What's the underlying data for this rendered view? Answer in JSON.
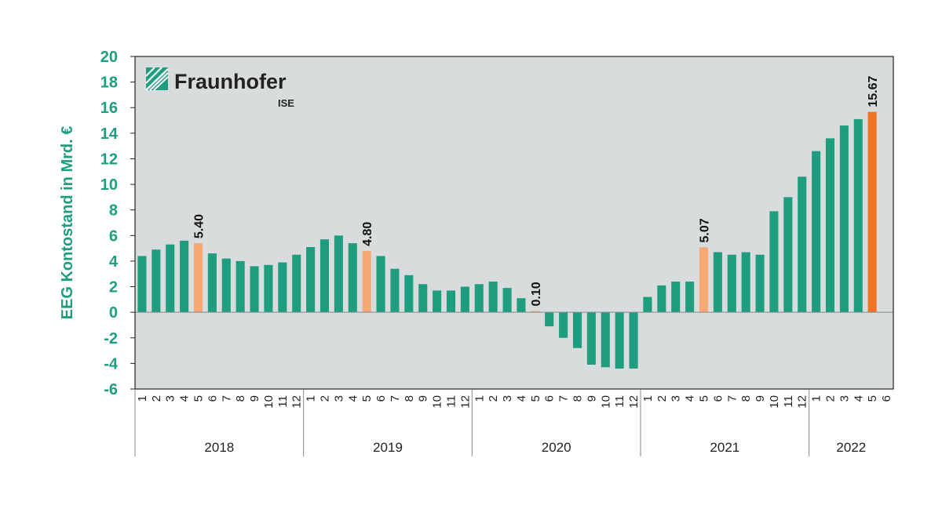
{
  "logo": {
    "name": "Fraunhofer",
    "sub": "ISE"
  },
  "colors": {
    "bar": "#1e9e7f",
    "highlight_light": "#f6a875",
    "highlight_dark": "#ee7421",
    "plot_background": "#d9dcdc",
    "axis_label": "#1e9e7f"
  },
  "chart_data": {
    "type": "bar",
    "ylabel": "EEG Kontostand in Mrd. €",
    "ylim": [
      -6,
      20
    ],
    "yticks": [
      20,
      18,
      16,
      14,
      12,
      10,
      8,
      6,
      4,
      2,
      0,
      -2,
      -4,
      -6
    ],
    "grid": false,
    "years": [
      {
        "label": "2018",
        "months": 12
      },
      {
        "label": "2019",
        "months": 12
      },
      {
        "label": "2020",
        "months": 12
      },
      {
        "label": "2021",
        "months": 12
      },
      {
        "label": "2022",
        "months": 6
      }
    ],
    "month_labels": [
      "1",
      "2",
      "3",
      "4",
      "5",
      "6",
      "7",
      "8",
      "9",
      "10",
      "11",
      "12",
      "1",
      "2",
      "3",
      "4",
      "5",
      "6",
      "7",
      "8",
      "9",
      "10",
      "11",
      "12",
      "1",
      "2",
      "3",
      "4",
      "5",
      "6",
      "7",
      "8",
      "9",
      "10",
      "11",
      "12",
      "1",
      "2",
      "3",
      "4",
      "5",
      "6",
      "7",
      "8",
      "9",
      "10",
      "11",
      "12",
      "1",
      "2",
      "3",
      "4",
      "5",
      "6"
    ],
    "values": [
      4.4,
      4.9,
      5.3,
      5.6,
      5.4,
      4.6,
      4.2,
      4.0,
      3.6,
      3.7,
      3.9,
      4.5,
      5.1,
      5.7,
      6.0,
      5.4,
      4.8,
      4.4,
      3.4,
      2.9,
      2.2,
      1.7,
      1.7,
      2.0,
      2.2,
      2.4,
      1.9,
      1.1,
      0.1,
      -1.1,
      -2.0,
      -2.8,
      -4.1,
      -4.3,
      -4.4,
      -4.4,
      1.2,
      2.1,
      2.4,
      2.4,
      5.07,
      4.7,
      4.5,
      4.7,
      4.5,
      7.9,
      9.0,
      10.6,
      12.6,
      13.6,
      14.6,
      15.1,
      15.67,
      null
    ],
    "highlights": [
      {
        "index": 4,
        "label": "5.40",
        "color": "light"
      },
      {
        "index": 16,
        "label": "4.80",
        "color": "light"
      },
      {
        "index": 28,
        "label": "0.10",
        "color": "light"
      },
      {
        "index": 40,
        "label": "5.07",
        "color": "light"
      },
      {
        "index": 52,
        "label": "15.67",
        "color": "dark"
      }
    ]
  }
}
